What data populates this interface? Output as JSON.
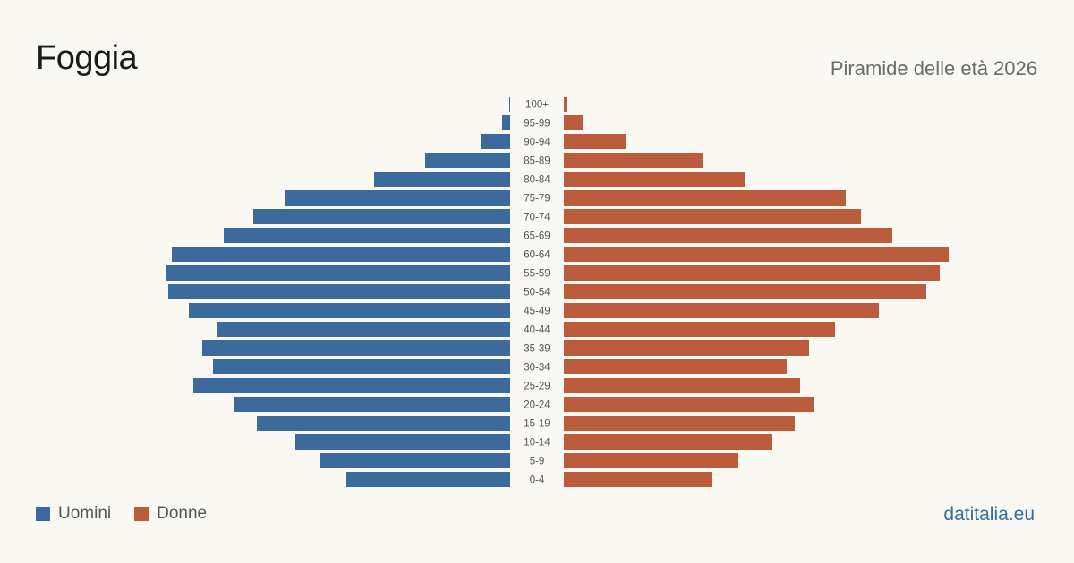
{
  "header": {
    "title": "Foggia",
    "subtitle": "Piramide delle età 2026"
  },
  "legend": {
    "men_label": "Uomini",
    "women_label": "Donne"
  },
  "footer": {
    "source": "datitalia.eu"
  },
  "colors": {
    "men": "#3c6a9c",
    "women": "#bb5d3d",
    "age_label": "#555555"
  },
  "chart_data": {
    "type": "bar",
    "orientation": "horizontal-pyramid",
    "categories": [
      "100+",
      "95-99",
      "90-94",
      "85-89",
      "80-84",
      "75-79",
      "70-74",
      "65-69",
      "60-64",
      "55-59",
      "50-54",
      "45-49",
      "40-44",
      "35-39",
      "30-34",
      "25-29",
      "20-24",
      "15-19",
      "10-14",
      "5-9",
      "0-4"
    ],
    "series": [
      {
        "name": "Uomini",
        "values": [
          0.2,
          1.8,
          6.6,
          19.0,
          30.4,
          50.4,
          57.4,
          64.0,
          75.6,
          77.0,
          76.4,
          71.8,
          65.6,
          68.8,
          66.4,
          70.8,
          61.6,
          56.6,
          48.0,
          42.4,
          36.6
        ]
      },
      {
        "name": "Donne",
        "values": [
          0.8,
          4.2,
          14.0,
          31.2,
          40.4,
          63.0,
          66.4,
          73.4,
          86.0,
          84.0,
          81.0,
          70.4,
          60.6,
          54.8,
          49.8,
          52.8,
          55.8,
          51.6,
          46.6,
          39.0,
          33.0
        ]
      }
    ],
    "xlim": [
      0,
      100
    ],
    "grid": false,
    "legend_position": "bottom-left"
  }
}
